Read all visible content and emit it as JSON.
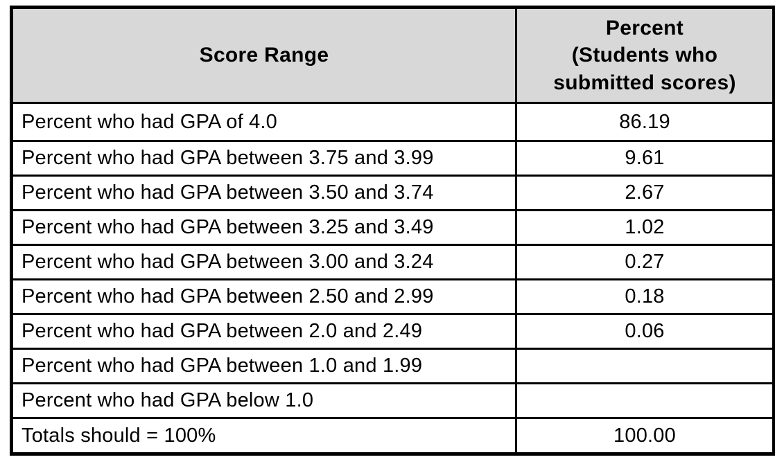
{
  "header": {
    "score_range": "Score Range",
    "percent_line1": "Percent",
    "percent_line2": "(Students who",
    "percent_line3": "submitted scores)"
  },
  "rows": [
    {
      "label": "Percent who had GPA of 4.0",
      "value": "86.19"
    },
    {
      "label": "Percent who had GPA between 3.75 and 3.99",
      "value": "9.61"
    },
    {
      "label": "Percent who had GPA between 3.50 and 3.74",
      "value": "2.67"
    },
    {
      "label": "Percent who had GPA between 3.25 and 3.49",
      "value": "1.02"
    },
    {
      "label": "Percent who had GPA between 3.00 and 3.24",
      "value": "0.27"
    },
    {
      "label": "Percent who had GPA between 2.50 and 2.99",
      "value": "0.18"
    },
    {
      "label": "Percent who had GPA between 2.0 and 2.49",
      "value": "0.06"
    },
    {
      "label": "Percent who had GPA between 1.0 and 1.99",
      "value": ""
    },
    {
      "label": "Percent who had GPA below 1.0",
      "value": ""
    },
    {
      "label": "Totals should = 100%",
      "value": "100.00"
    }
  ],
  "colors": {
    "header_background": "#d8d8d8",
    "border": "#000000",
    "text": "#000000",
    "page_background": "#ffffff"
  }
}
